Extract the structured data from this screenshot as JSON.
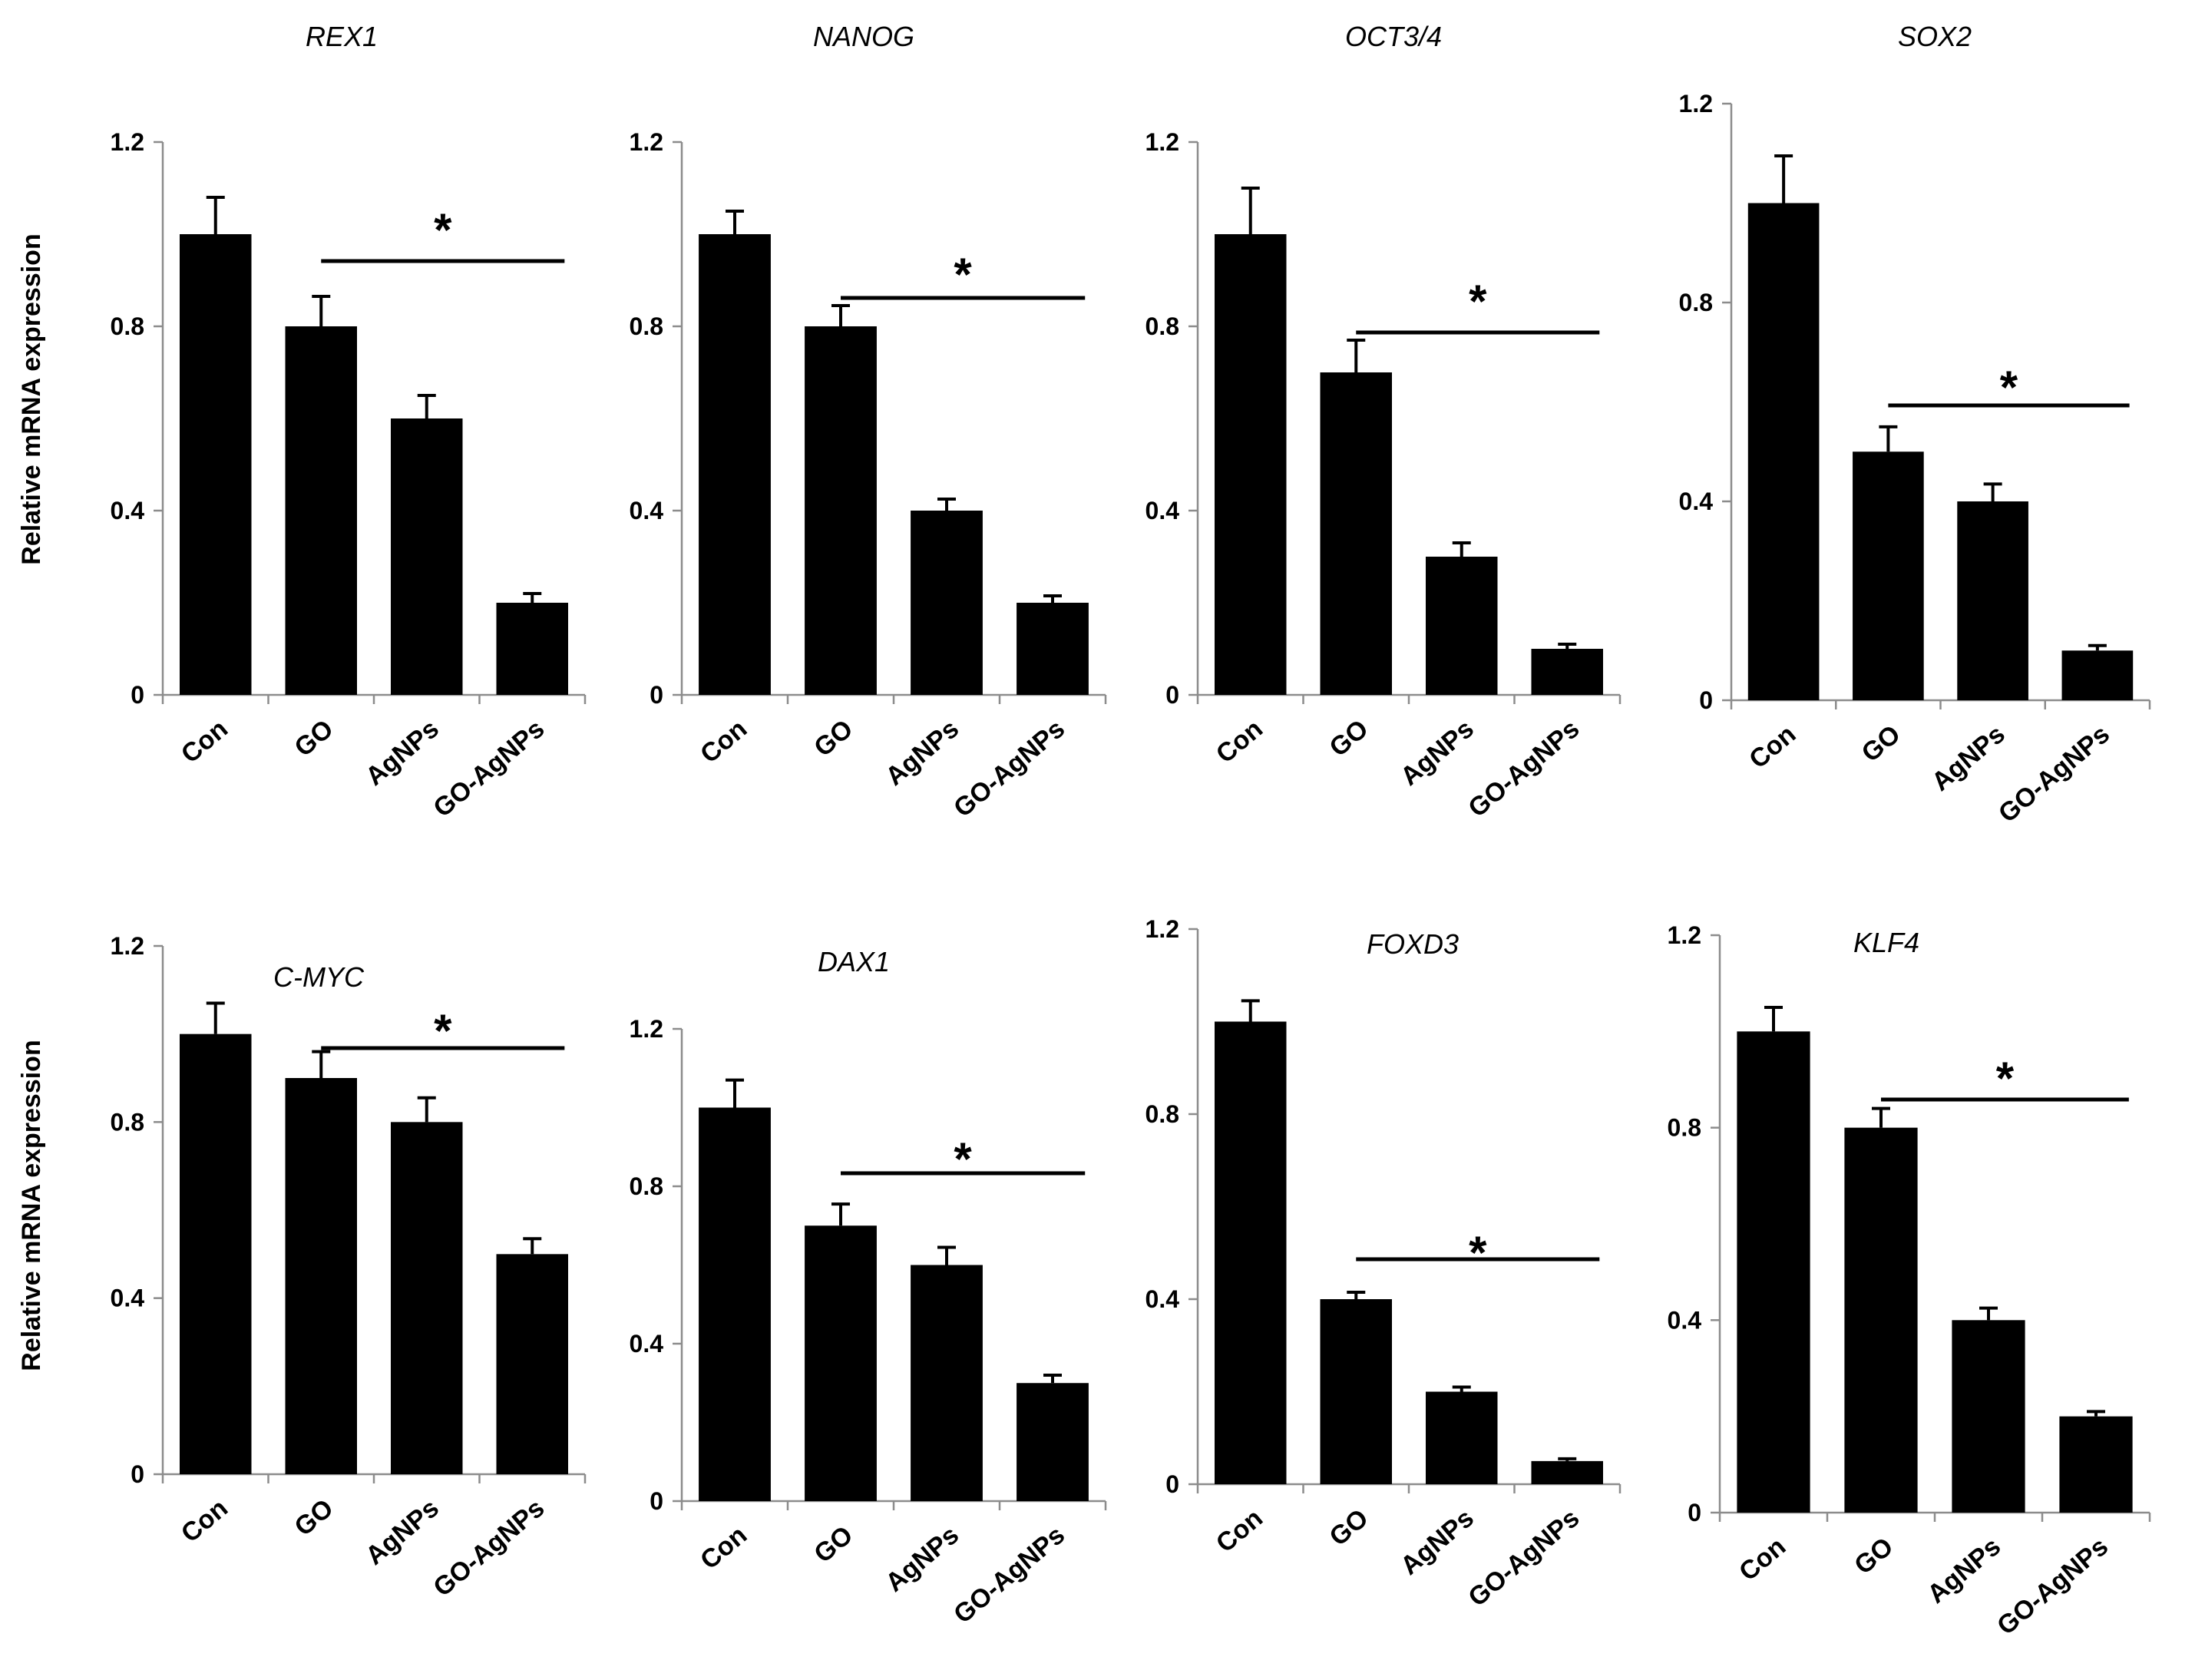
{
  "colors": {
    "bar": "#000000",
    "axis": "#8c8c8c",
    "background": "#ffffff"
  },
  "ylabel": "Relative mRNA expression",
  "chart_data": [
    {
      "type": "bar",
      "title": "REX1",
      "categories": [
        "Con",
        "GO",
        "AgNPs",
        "GO-AgNPs"
      ],
      "values": [
        1.0,
        0.8,
        0.6,
        0.2
      ],
      "errors": [
        0.08,
        0.065,
        0.05,
        0.02
      ],
      "significance": {
        "from": "GO",
        "to": "GO-AgNPs",
        "label": "*"
      },
      "yticks": [
        "0",
        "0.4",
        "0.8",
        "1.2"
      ],
      "ylim": [
        0,
        1.2
      ]
    },
    {
      "type": "bar",
      "title": "NANOG",
      "categories": [
        "Con",
        "GO",
        "AgNPs",
        "GO-AgNPs"
      ],
      "values": [
        1.0,
        0.8,
        0.4,
        0.2
      ],
      "errors": [
        0.05,
        0.045,
        0.025,
        0.015
      ],
      "significance": {
        "from": "GO",
        "to": "GO-AgNPs",
        "label": "*"
      },
      "yticks": [
        "0",
        "0.4",
        "0.8",
        "1.2"
      ],
      "ylim": [
        0,
        1.2
      ]
    },
    {
      "type": "bar",
      "title": "OCT3/4",
      "categories": [
        "Con",
        "GO",
        "AgNPs",
        "GO-AgNPs"
      ],
      "values": [
        1.0,
        0.7,
        0.3,
        0.1
      ],
      "errors": [
        0.1,
        0.07,
        0.03,
        0.01
      ],
      "significance": {
        "from": "GO",
        "to": "GO-AgNPs",
        "label": "*"
      },
      "yticks": [
        "0",
        "0.4",
        "0.8",
        "1.2"
      ],
      "ylim": [
        0,
        1.2
      ]
    },
    {
      "type": "bar",
      "title": "SOX2",
      "categories": [
        "Con",
        "GO",
        "AgNPs",
        "GO-AgNPs"
      ],
      "values": [
        1.0,
        0.5,
        0.4,
        0.1
      ],
      "errors": [
        0.095,
        0.05,
        0.035,
        0.01
      ],
      "significance": {
        "from": "GO",
        "to": "GO-AgNPs",
        "label": "*"
      },
      "yticks": [
        "0",
        "0.4",
        "0.8",
        "1.2"
      ],
      "ylim": [
        0,
        1.2
      ]
    },
    {
      "type": "bar",
      "title": "C-MYC",
      "categories": [
        "Con",
        "GO",
        "AgNPs",
        "GO-AgNPs"
      ],
      "values": [
        1.0,
        0.9,
        0.8,
        0.5
      ],
      "errors": [
        0.07,
        0.06,
        0.055,
        0.035
      ],
      "significance": {
        "from": "GO",
        "to": "GO-AgNPs",
        "label": "*"
      },
      "yticks": [
        "0",
        "0.4",
        "0.8",
        "1.2"
      ],
      "ylim": [
        0,
        1.2
      ]
    },
    {
      "type": "bar",
      "title": "DAX1",
      "categories": [
        "Con",
        "GO",
        "AgNPs",
        "GO-AgNPs"
      ],
      "values": [
        1.0,
        0.7,
        0.6,
        0.3
      ],
      "errors": [
        0.07,
        0.055,
        0.045,
        0.02
      ],
      "significance": {
        "from": "GO",
        "to": "GO-AgNPs",
        "label": "*"
      },
      "yticks": [
        "0",
        "0.4",
        "0.8",
        "1.2"
      ],
      "ylim": [
        0,
        1.2
      ]
    },
    {
      "type": "bar",
      "title": "FOXD3",
      "categories": [
        "Con",
        "GO",
        "AgNPs",
        "GO-AgNPs"
      ],
      "values": [
        1.0,
        0.4,
        0.2,
        0.05
      ],
      "errors": [
        0.045,
        0.015,
        0.01,
        0.005
      ],
      "significance": {
        "from": "GO",
        "to": "GO-AgNPs",
        "label": "*"
      },
      "yticks": [
        "0",
        "0.4",
        "0.8",
        "1.2"
      ],
      "ylim": [
        0,
        1.2
      ]
    },
    {
      "type": "bar",
      "title": "KLF4",
      "categories": [
        "Con",
        "GO",
        "AgNPs",
        "GO-AgNPs"
      ],
      "values": [
        1.0,
        0.8,
        0.4,
        0.2
      ],
      "errors": [
        0.05,
        0.04,
        0.025,
        0.01
      ],
      "significance": {
        "from": "GO",
        "to": "GO-AgNPs",
        "label": "*"
      },
      "yticks": [
        "0",
        "0.4",
        "0.8",
        "1.2"
      ],
      "ylim": [
        0,
        1.2
      ]
    }
  ]
}
